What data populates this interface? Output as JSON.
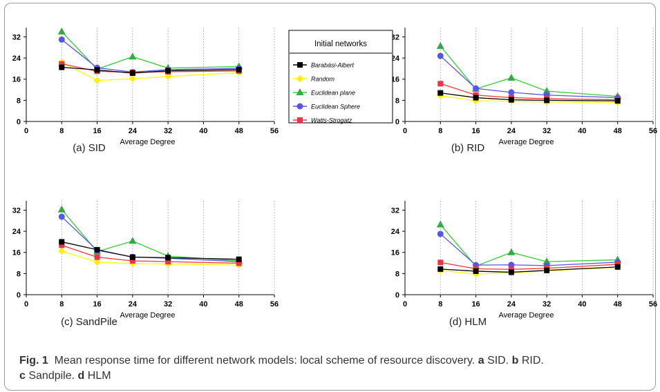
{
  "legend": {
    "title": "Initial networks",
    "entries": [
      "Barabási-Albert",
      "Random",
      "Euclidean plane",
      "Euclidean Sphere",
      "Watts-Strogatz"
    ]
  },
  "caption": {
    "label": "Fig. 1",
    "text": "Mean response time for different network models: local scheme of resource discovery.",
    "a_tag": "a",
    "a_text": "SID.",
    "b_tag": "b",
    "b_text": "RID.",
    "c_tag": "c",
    "c_text": "Sandpile.",
    "d_tag": "d",
    "d_text": "HLM"
  },
  "colors": {
    "Barabási-Albert": "#000000",
    "Random": "#ffff00",
    "Euclidean plane": "#33cc33",
    "Euclidean Sphere": "#4444ee",
    "Watts-Strogatz": "#ff2222"
  },
  "chart_data": [
    {
      "type": "line",
      "subtitle": "(a)  SID",
      "xlabel": "Average Degree",
      "xlim": [
        0,
        56
      ],
      "ylim": [
        0,
        35
      ],
      "xticks": [
        0,
        8,
        16,
        24,
        32,
        40,
        48,
        56
      ],
      "yticks": [
        0,
        8,
        16,
        24,
        32
      ],
      "x": [
        8,
        16,
        24,
        32,
        48
      ],
      "series": [
        {
          "name": "Barabási-Albert",
          "values": [
            20.5,
            19.5,
            18.3,
            19.2,
            19.6
          ]
        },
        {
          "name": "Random",
          "values": [
            22.5,
            15.5,
            16.2,
            17.0,
            18.5
          ]
        },
        {
          "name": "Euclidean plane",
          "values": [
            34.0,
            19.8,
            24.5,
            20.2,
            20.8
          ]
        },
        {
          "name": "Euclidean Sphere",
          "values": [
            31.0,
            20.3,
            18.7,
            19.6,
            20.1
          ]
        },
        {
          "name": "Watts-Strogatz",
          "values": [
            21.8,
            19.0,
            18.6,
            18.8,
            19.1
          ]
        }
      ]
    },
    {
      "type": "line",
      "subtitle": "(b)  RID",
      "xlabel": "Average Degree",
      "xlim": [
        0,
        56
      ],
      "ylim": [
        0,
        35
      ],
      "xticks": [
        0,
        8,
        16,
        24,
        32,
        40,
        48,
        56
      ],
      "yticks": [
        0,
        8,
        16,
        24,
        32
      ],
      "x": [
        8,
        16,
        24,
        32,
        48
      ],
      "series": [
        {
          "name": "Barabási-Albert",
          "values": [
            10.8,
            9.0,
            8.2,
            8.0,
            7.8
          ]
        },
        {
          "name": "Random",
          "values": [
            9.8,
            7.8,
            7.6,
            7.4,
            7.2
          ]
        },
        {
          "name": "Euclidean plane",
          "values": [
            28.5,
            12.3,
            16.5,
            11.5,
            9.5
          ]
        },
        {
          "name": "Euclidean Sphere",
          "values": [
            24.8,
            12.5,
            11.0,
            10.0,
            9.0
          ]
        },
        {
          "name": "Watts-Strogatz",
          "values": [
            14.3,
            10.0,
            9.0,
            8.6,
            8.2
          ]
        }
      ]
    },
    {
      "type": "line",
      "subtitle": "(c)  SandPile",
      "xlabel": "Average Degree",
      "xlim": [
        0,
        56
      ],
      "ylim": [
        0,
        35
      ],
      "xticks": [
        0,
        8,
        16,
        24,
        32,
        40,
        48,
        56
      ],
      "yticks": [
        0,
        8,
        16,
        24,
        32
      ],
      "x": [
        8,
        16,
        24,
        32,
        48
      ],
      "series": [
        {
          "name": "Barabási-Albert",
          "values": [
            20.0,
            17.0,
            14.2,
            14.0,
            13.4
          ]
        },
        {
          "name": "Random",
          "values": [
            16.5,
            12.3,
            11.8,
            11.6,
            11.2
          ]
        },
        {
          "name": "Euclidean plane",
          "values": [
            32.2,
            16.3,
            20.3,
            14.6,
            12.8
          ]
        },
        {
          "name": "Euclidean Sphere",
          "values": [
            29.5,
            16.8,
            14.3,
            13.8,
            12.5
          ]
        },
        {
          "name": "Watts-Strogatz",
          "values": [
            18.7,
            14.2,
            12.8,
            12.5,
            11.9
          ]
        }
      ]
    },
    {
      "type": "line",
      "subtitle": "(d)  HLM",
      "xlabel": "Average Degree",
      "xlim": [
        0,
        56
      ],
      "ylim": [
        0,
        35
      ],
      "xticks": [
        0,
        8,
        16,
        24,
        32,
        40,
        48,
        56
      ],
      "yticks": [
        0,
        8,
        16,
        24,
        32
      ],
      "x": [
        8,
        16,
        24,
        32,
        48
      ],
      "series": [
        {
          "name": "Barabási-Albert",
          "values": [
            9.7,
            8.9,
            8.5,
            9.2,
            10.5
          ]
        },
        {
          "name": "Random",
          "values": [
            9.2,
            7.8,
            8.3,
            9.0,
            10.4
          ]
        },
        {
          "name": "Euclidean plane",
          "values": [
            26.5,
            10.8,
            16.0,
            12.5,
            13.2
          ]
        },
        {
          "name": "Euclidean Sphere",
          "values": [
            23.0,
            11.2,
            11.3,
            11.0,
            12.3
          ]
        },
        {
          "name": "Watts-Strogatz",
          "values": [
            12.2,
            9.8,
            9.6,
            10.0,
            11.5
          ]
        }
      ]
    }
  ]
}
